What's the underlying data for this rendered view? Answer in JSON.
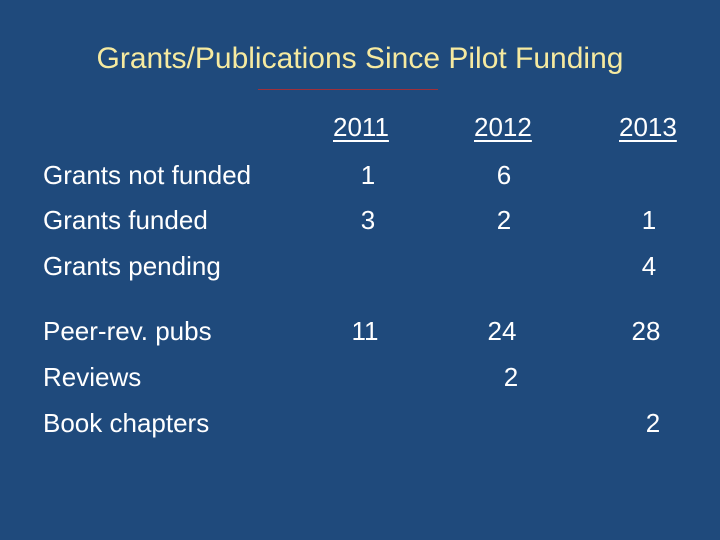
{
  "title": "Grants/Publications Since Pilot Funding",
  "years": [
    "2011",
    "2012",
    "2013"
  ],
  "rows": [
    {
      "label": "Grants not funded",
      "values": [
        "1",
        "6",
        ""
      ]
    },
    {
      "label": "Grants funded",
      "values": [
        "3",
        "2",
        "1"
      ]
    },
    {
      "label": "Grants pending",
      "values": [
        "",
        "",
        "4"
      ]
    },
    {
      "label": "Peer-rev. pubs",
      "values": [
        "11",
        "24",
        "28"
      ]
    },
    {
      "label": "Reviews",
      "values": [
        "",
        "2",
        ""
      ]
    },
    {
      "label": "Book chapters",
      "values": [
        "",
        "",
        "2"
      ]
    }
  ]
}
